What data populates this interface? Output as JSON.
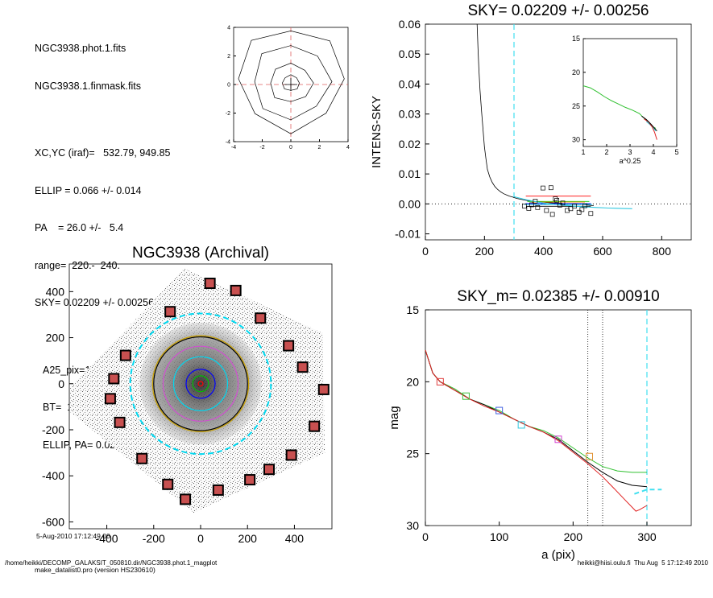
{
  "info": {
    "file1": "NGC3938.phot.1.fits",
    "file2": "NGC3938.1.finmask.fits",
    "xcyc": "XC,YC (iraf)=   532.79, 949.85",
    "ellip": "ELLIP = 0.066 +/- 0.014",
    "pa": "PA    = 26.0 +/-   5.4",
    "range": "range=  220.-  240.",
    "sky": "SKY= 0.02209 +/- 0.00256",
    "a25": "A25_pix=141.9   T= 5.1",
    "bt": "BT=  10.92   MABS=-20.01",
    "ellip_pa": "ELLIP, PA= 0.029   999.0",
    "date": "5-Aug-2010 17:12:49.00",
    "program": "make_datalist0.pro (version HS230610)"
  },
  "footer": {
    "path": "/home/heikki/DECOMP_GALAKSIT_050810.dir/NGC3938.phot.1_magplot",
    "user": "heikki@hiisi.oulu.fi  Thu Aug  5 17:12:49 2010"
  },
  "chart_data": [
    {
      "type": "line",
      "panel": "centre contours",
      "xlim": [
        -4,
        4
      ],
      "ylim": [
        -4,
        4
      ],
      "xticks": [
        "-4",
        "-2",
        "0",
        "2",
        "4"
      ],
      "yticks": [
        "-4",
        "-2",
        "0",
        "2",
        "4"
      ],
      "contours": [
        {
          "rx": 0.6,
          "ry": 0.55,
          "cx": 0.0,
          "cy": 0.1
        },
        {
          "rx": 1.5,
          "ry": 1.35,
          "cx": 0.0,
          "cy": 0.1
        },
        {
          "rx": 2.7,
          "ry": 2.6,
          "cx": 0.0,
          "cy": 0.2
        },
        {
          "rx": 3.7,
          "ry": 3.6,
          "cx": 0.0,
          "cy": 0.4
        }
      ]
    },
    {
      "type": "line",
      "panel": "sky",
      "title": "SKY= 0.02209 +/- 0.00256",
      "ylabel": "INTENS-SKY",
      "xlim": [
        0,
        900
      ],
      "ylim": [
        -0.012,
        0.06
      ],
      "xticks": [
        "0",
        "200",
        "400",
        "600",
        "800"
      ],
      "yticks": [
        "-0.01",
        "0.00",
        "0.01",
        "0.02",
        "0.03",
        "0.04",
        "0.05",
        "0.06"
      ],
      "profile": [
        [
          175,
          0.06
        ],
        [
          178,
          0.052
        ],
        [
          181,
          0.045
        ],
        [
          185,
          0.038
        ],
        [
          190,
          0.031
        ],
        [
          195,
          0.025
        ],
        [
          200,
          0.019
        ],
        [
          205,
          0.015
        ],
        [
          210,
          0.0115
        ],
        [
          218,
          0.009
        ],
        [
          226,
          0.0072
        ],
        [
          235,
          0.0058
        ],
        [
          245,
          0.0048
        ],
        [
          255,
          0.004
        ],
        [
          265,
          0.0034
        ],
        [
          275,
          0.003
        ],
        [
          285,
          0.0026
        ],
        [
          295,
          0.0023
        ],
        [
          300,
          0.0021
        ],
        [
          310,
          0.0018
        ],
        [
          330,
          0.0014
        ],
        [
          350,
          0.001
        ],
        [
          380,
          0.0007
        ],
        [
          420,
          0.0004
        ],
        [
          460,
          0.0002
        ],
        [
          500,
          0.0
        ],
        [
          540,
          -0.0003
        ],
        [
          570,
          -0.0006
        ]
      ],
      "sky_lines": [
        {
          "color": "#ff0000",
          "x": [
            340,
            560
          ],
          "y": [
            0.0026,
            0.0026
          ]
        },
        {
          "color": "#00cc00",
          "x": [
            345,
            555
          ],
          "y": [
            0.0008,
            0.0008
          ]
        },
        {
          "color": "#00b8d8",
          "x": [
            335,
            565
          ],
          "y": [
            -0.0002,
            -0.0002
          ]
        },
        {
          "color": "#0000ff",
          "x": [
            340,
            560
          ],
          "y": [
            0.0001,
            0.0001
          ]
        },
        {
          "color": "#ff8c00",
          "x": [
            360,
            540
          ],
          "y": [
            0.0006,
            0.0006
          ]
        },
        {
          "color": "#000000",
          "x": [
            345,
            560
          ],
          "y": [
            -0.0008,
            -0.0008
          ]
        }
      ],
      "cyan_profile": [
        [
          300,
          0.0024
        ],
        [
          340,
          0.0014
        ],
        [
          380,
          0.0006
        ],
        [
          420,
          0.0
        ],
        [
          460,
          -0.0004
        ],
        [
          500,
          -0.0007
        ],
        [
          540,
          -0.001
        ],
        [
          580,
          -0.0012
        ],
        [
          620,
          -0.0014
        ],
        [
          660,
          -0.0015
        ],
        [
          700,
          -0.0016
        ]
      ],
      "sky_squares": [
        [
          335,
          -0.0007
        ],
        [
          350,
          -0.0015
        ],
        [
          360,
          -0.0003
        ],
        [
          372,
          0.0009
        ],
        [
          380,
          -0.0012
        ],
        [
          398,
          0.0053
        ],
        [
          410,
          -0.0022
        ],
        [
          425,
          0.0054
        ],
        [
          430,
          -0.0035
        ],
        [
          440,
          0.0017
        ],
        [
          445,
          0.0012
        ],
        [
          455,
          -0.0004
        ],
        [
          465,
          0.0003
        ],
        [
          480,
          -0.0022
        ],
        [
          492,
          -0.0016
        ],
        [
          505,
          -0.0007
        ],
        [
          520,
          -0.0028
        ],
        [
          530,
          -0.0019
        ],
        [
          540,
          -0.0006
        ],
        [
          560,
          -0.0032
        ]
      ],
      "cyan_vline_x": 300,
      "inset": {
        "xlim": [
          1,
          5
        ],
        "ylim": [
          15,
          31
        ],
        "xlabel": "a^0.25",
        "xticks": [
          "1",
          "2",
          "3",
          "4",
          "5"
        ],
        "yticks": [
          "15",
          "20",
          "25",
          "30"
        ],
        "green": [
          [
            1,
            22.0
          ],
          [
            1.3,
            22.3
          ],
          [
            1.6,
            22.9
          ],
          [
            1.9,
            23.6
          ],
          [
            2.2,
            24.2
          ],
          [
            2.5,
            24.7
          ],
          [
            2.8,
            25.2
          ],
          [
            3.1,
            25.6
          ],
          [
            3.4,
            26.1
          ],
          [
            3.6,
            26.8
          ],
          [
            3.8,
            27.4
          ],
          [
            3.95,
            28.0
          ],
          [
            4.1,
            28.3
          ]
        ],
        "black": [
          [
            3.5,
            26.5
          ],
          [
            3.7,
            27.0
          ],
          [
            3.9,
            27.7
          ],
          [
            4.05,
            28.3
          ],
          [
            4.15,
            28.7
          ]
        ],
        "red": [
          [
            3.6,
            26.9
          ],
          [
            3.8,
            27.4
          ],
          [
            3.95,
            28.1
          ],
          [
            4.05,
            28.9
          ],
          [
            4.15,
            30.0
          ]
        ],
        "cyan": [
          [
            3.7,
            27.3
          ],
          [
            3.9,
            27.9
          ],
          [
            4.1,
            28.7
          ]
        ]
      }
    },
    {
      "type": "scatter",
      "panel": "image",
      "title": "NGC3938 (Archival)",
      "xlim": [
        -560,
        560
      ],
      "ylim": [
        -630,
        520
      ],
      "xticks": [
        "-400",
        "-200",
        "0",
        "200",
        "400"
      ],
      "yticks": [
        "-600",
        "-400",
        "-200",
        "0",
        "200",
        "400"
      ],
      "sky_boxes": [
        [
          40,
          436
        ],
        [
          150,
          405
        ],
        [
          -130,
          313
        ],
        [
          255,
          285
        ],
        [
          -320,
          123
        ],
        [
          375,
          165
        ],
        [
          -370,
          22
        ],
        [
          435,
          72
        ],
        [
          -385,
          -65
        ],
        [
          525,
          -25
        ],
        [
          -345,
          -168
        ],
        [
          485,
          -185
        ],
        [
          -250,
          -325
        ],
        [
          387,
          -310
        ],
        [
          292,
          -372
        ],
        [
          -140,
          -437
        ],
        [
          210,
          -417
        ],
        [
          75,
          -462
        ],
        [
          -65,
          -502
        ]
      ],
      "circles": [
        {
          "color": "#00d8f0",
          "r": 300,
          "dash": true
        },
        {
          "color": "#000000",
          "r": 200
        },
        {
          "color": "#c8a000",
          "r": 205
        },
        {
          "color": "#d050d0",
          "r": 160
        },
        {
          "color": "#00d8f0",
          "r": 115
        },
        {
          "color": "#0000ff",
          "r": 62
        },
        {
          "color": "#00c000",
          "r": 34
        },
        {
          "color": "#ff0000",
          "r": 10
        }
      ]
    },
    {
      "type": "line",
      "panel": "magnitude",
      "title": "SKY_m=  0.02385 +/- 0.00910",
      "xlabel": "a (pix)",
      "ylabel": "mag",
      "xlim": [
        0,
        360
      ],
      "ylim": [
        15,
        30
      ],
      "xticks": [
        "0",
        "100",
        "200",
        "300"
      ],
      "yticks": [
        "15",
        "20",
        "25",
        "30"
      ],
      "range_lines": [
        220,
        240
      ],
      "cyan_vline_x": 300,
      "green": [
        [
          0,
          17.8
        ],
        [
          10,
          19.4
        ],
        [
          20,
          20.0
        ],
        [
          40,
          20.5
        ],
        [
          60,
          21.2
        ],
        [
          80,
          21.6
        ],
        [
          100,
          22.0
        ],
        [
          120,
          22.6
        ],
        [
          140,
          23.1
        ],
        [
          160,
          23.4
        ],
        [
          180,
          23.9
        ],
        [
          200,
          24.6
        ],
        [
          220,
          25.3
        ],
        [
          240,
          25.9
        ],
        [
          260,
          26.2
        ],
        [
          280,
          26.3
        ],
        [
          300,
          26.3
        ]
      ],
      "black": [
        [
          0,
          17.8
        ],
        [
          10,
          19.4
        ],
        [
          20,
          20.0
        ],
        [
          40,
          20.6
        ],
        [
          60,
          21.2
        ],
        [
          80,
          21.6
        ],
        [
          100,
          22.1
        ],
        [
          120,
          22.6
        ],
        [
          140,
          23.1
        ],
        [
          160,
          23.5
        ],
        [
          180,
          24.0
        ],
        [
          200,
          24.8
        ],
        [
          220,
          25.6
        ],
        [
          240,
          26.3
        ],
        [
          260,
          26.9
        ],
        [
          280,
          27.2
        ],
        [
          300,
          27.3
        ]
      ],
      "red": [
        [
          0,
          17.8
        ],
        [
          10,
          19.4
        ],
        [
          20,
          20.0
        ],
        [
          40,
          20.6
        ],
        [
          60,
          21.2
        ],
        [
          80,
          21.7
        ],
        [
          100,
          22.1
        ],
        [
          120,
          22.6
        ],
        [
          140,
          23.1
        ],
        [
          160,
          23.5
        ],
        [
          180,
          24.1
        ],
        [
          200,
          24.9
        ],
        [
          220,
          25.7
        ],
        [
          240,
          26.6
        ],
        [
          255,
          27.4
        ],
        [
          270,
          28.2
        ],
        [
          285,
          29.0
        ],
        [
          290,
          28.9
        ],
        [
          300,
          28.6
        ]
      ],
      "cyan": [
        [
          283,
          27.8
        ],
        [
          300,
          27.5
        ],
        [
          320,
          27.5
        ]
      ],
      "squares": [
        {
          "x": 20,
          "y": 20.0,
          "color": "#e04040"
        },
        {
          "x": 55,
          "y": 21.0,
          "color": "#40c040"
        },
        {
          "x": 100,
          "y": 22.0,
          "color": "#4060e0"
        },
        {
          "x": 130,
          "y": 23.0,
          "color": "#30c8e0"
        },
        {
          "x": 180,
          "y": 24.0,
          "color": "#d040d0"
        },
        {
          "x": 222,
          "y": 25.2,
          "color": "#e09030"
        }
      ]
    }
  ]
}
